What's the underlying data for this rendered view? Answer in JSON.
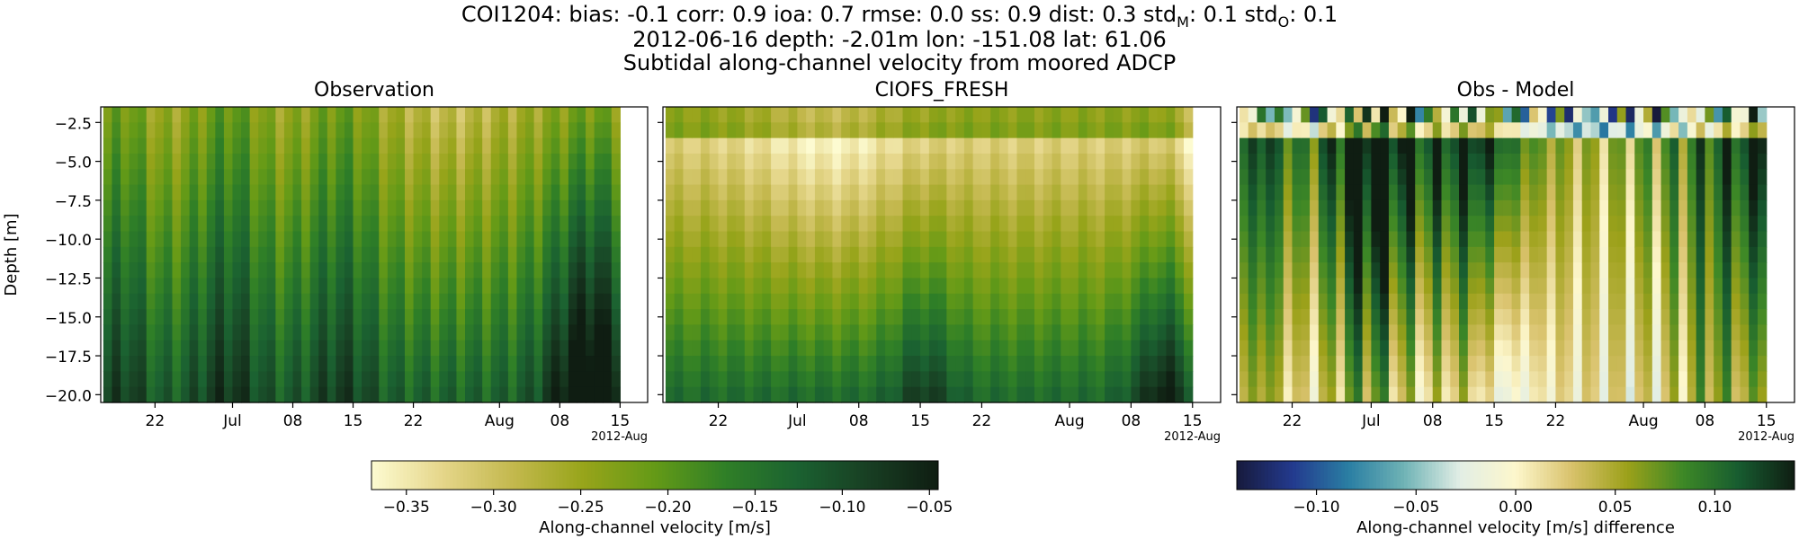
{
  "header": {
    "line1_prefix": "COI1204: bias: -0.1  corr: 0.9  ioa: 0.7  rmse: 0.0  ss: 0.9  dist: 0.3  std",
    "line1_sub_m": "M",
    "line1_mid": ": 0.1  std",
    "line1_sub_o": "O",
    "line1_suffix": ": 0.1",
    "line2": "2012-06-16 depth: -2.01m lon: -151.08 lat: 61.06",
    "line3": "Subtidal along-channel velocity from moored ADCP"
  },
  "colors": {
    "speed_cmap": [
      "#fdfbd1",
      "#e5d68a",
      "#c3b84d",
      "#97a41a",
      "#649a17",
      "#2f7f27",
      "#1b6231",
      "#183f23",
      "#0f1d12"
    ],
    "diff_cmap": [
      "#171a3c",
      "#233a8e",
      "#2a7ea3",
      "#6fb3b5",
      "#e2eee5",
      "#fdf7cc",
      "#d9c26c",
      "#9ca11a",
      "#3d8826",
      "#175c30",
      "#0f1d12"
    ]
  },
  "chart_data": [
    {
      "type": "heatmap",
      "title": "Observation",
      "ylabel": "Depth [m]",
      "xlabel": "",
      "x_range": [
        "2012-06-16",
        "2012-08-16"
      ],
      "ylim": [
        -20.5,
        -1.5
      ],
      "yticks": [
        -2.5,
        -5.0,
        -7.5,
        -10.0,
        -12.5,
        -15.0,
        -17.5,
        -20.0
      ],
      "ytick_labels": [
        "−2.5",
        "−5.0",
        "−7.5",
        "−10.0",
        "−12.5",
        "−15.0",
        "−17.5",
        "−20.0"
      ],
      "xticks": [
        "2012-06-22",
        "2012-07-01",
        "2012-07-08",
        "2012-07-15",
        "2012-07-22",
        "2012-08-01",
        "2012-08-08",
        "2012-08-15"
      ],
      "xtick_labels": [
        "22",
        "Jul",
        "08",
        "15",
        "22",
        "Aug",
        "08",
        "15"
      ],
      "x_offset_label": "2012-Aug",
      "depth_levels": [
        -2.0,
        -3.0,
        -4.0,
        -5.0,
        -6.0,
        -7.0,
        -8.0,
        -9.0,
        -10.0,
        -11.0,
        -12.0,
        -13.0,
        -14.0,
        -15.0,
        -16.0,
        -17.0,
        -18.0,
        -19.0,
        -20.0
      ],
      "colorbar": "speed",
      "field": "observation"
    },
    {
      "type": "heatmap",
      "title": "CIOFS_FRESH",
      "xlabel": "",
      "x_range": [
        "2012-06-16",
        "2012-08-16"
      ],
      "ylim": [
        -20.5,
        -1.5
      ],
      "xticks": [
        "2012-06-22",
        "2012-07-01",
        "2012-07-08",
        "2012-07-15",
        "2012-07-22",
        "2012-08-01",
        "2012-08-08",
        "2012-08-15"
      ],
      "xtick_labels": [
        "22",
        "Jul",
        "08",
        "15",
        "22",
        "Aug",
        "08",
        "15"
      ],
      "x_offset_label": "2012-Aug",
      "colorbar": "speed",
      "field": "model"
    },
    {
      "type": "heatmap",
      "title": "Obs - Model",
      "xlabel": "",
      "x_range": [
        "2012-06-16",
        "2012-08-16"
      ],
      "ylim": [
        -20.5,
        -1.5
      ],
      "xticks": [
        "2012-06-22",
        "2012-07-01",
        "2012-07-08",
        "2012-07-15",
        "2012-07-22",
        "2012-08-01",
        "2012-08-08",
        "2012-08-15"
      ],
      "xtick_labels": [
        "22",
        "Jul",
        "08",
        "15",
        "22",
        "Aug",
        "08",
        "15"
      ],
      "x_offset_label": "2012-Aug",
      "colorbar": "diff",
      "field": "difference"
    }
  ],
  "colorbars": {
    "speed": {
      "range": [
        -0.37,
        -0.045
      ],
      "ticks": [
        -0.35,
        -0.3,
        -0.25,
        -0.2,
        -0.15,
        -0.1,
        -0.05
      ],
      "tick_labels": [
        "−0.35",
        "−0.30",
        "−0.25",
        "−0.20",
        "−0.15",
        "−0.10",
        "−0.05"
      ],
      "label": "Along-channel velocity [m/s]"
    },
    "diff": {
      "range": [
        -0.14,
        0.14
      ],
      "ticks": [
        -0.1,
        -0.05,
        0.0,
        0.05,
        0.1
      ],
      "tick_labels": [
        "−0.10",
        "−0.05",
        "0.00",
        "0.05",
        "0.10"
      ],
      "label": "Along-channel velocity [m/s] difference"
    }
  }
}
